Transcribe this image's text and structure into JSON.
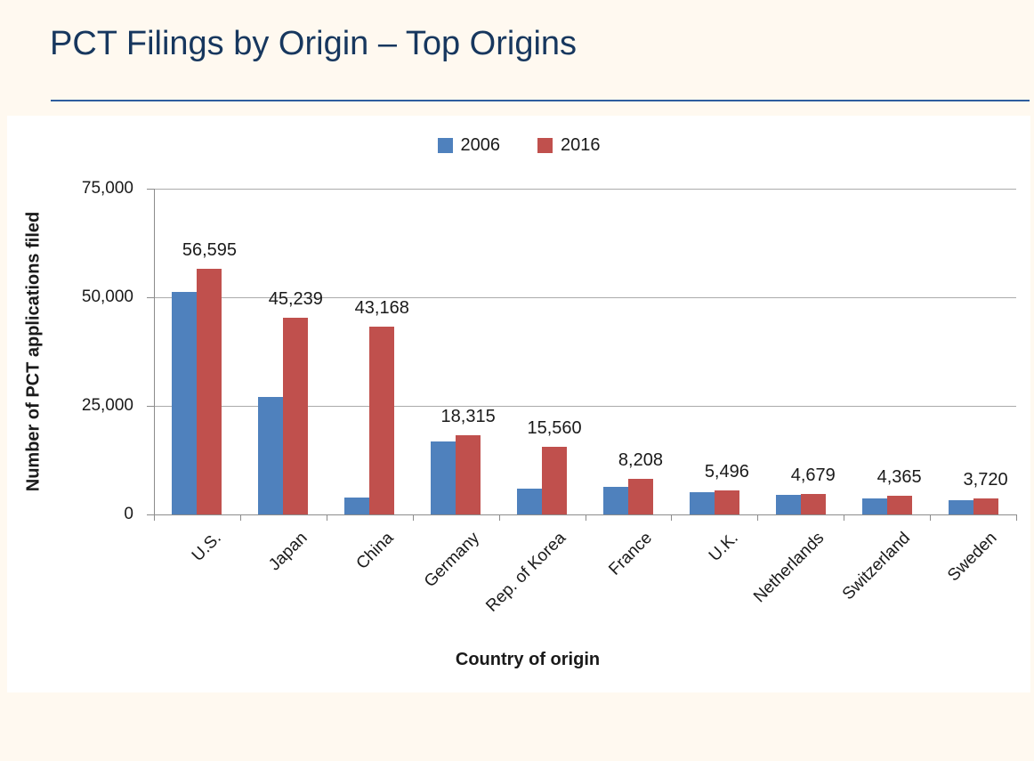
{
  "page": {
    "colors": {
      "background": "#FFF9F0",
      "panel": "#FFFFFF",
      "title_text": "#17375E",
      "title_rule": "#2E5E9E",
      "gridline": "#ABABAB",
      "axis_line": "#8C8C8C",
      "label_text": "#1A1A1A",
      "series_2006": "#4F81BD",
      "series_2016": "#C0504D"
    }
  },
  "chart_data": {
    "type": "bar",
    "title": "PCT Filings by Origin – Top Origins",
    "xlabel": "Country of origin",
    "ylabel": "Number of PCT applications filed",
    "ylim": [
      0,
      75000
    ],
    "yticks": [
      0,
      25000,
      50000,
      75000
    ],
    "ytick_labels": [
      "0",
      "25,000",
      "50,000",
      "75,000"
    ],
    "grid": true,
    "legend_position": "top",
    "categories": [
      "U.S.",
      "Japan",
      "China",
      "Germany",
      "Rep. of Korea",
      "France",
      "U.K.",
      "Netherlands",
      "Switzerland",
      "Sweden"
    ],
    "series": [
      {
        "name": "2006",
        "color": "#4F81BD",
        "show_data_labels": false,
        "values": [
          51280,
          27025,
          3942,
          16736,
          5945,
          6256,
          5045,
          4553,
          3621,
          3316
        ]
      },
      {
        "name": "2016",
        "color": "#C0504D",
        "show_data_labels": true,
        "values": [
          56595,
          45239,
          43168,
          18315,
          15560,
          8208,
          5496,
          4679,
          4365,
          3720
        ],
        "data_labels": [
          "56,595",
          "45,239",
          "43,168",
          "18,315",
          "15,560",
          "8,208",
          "5,496",
          "4,679",
          "4,365",
          "3,720"
        ]
      }
    ]
  }
}
